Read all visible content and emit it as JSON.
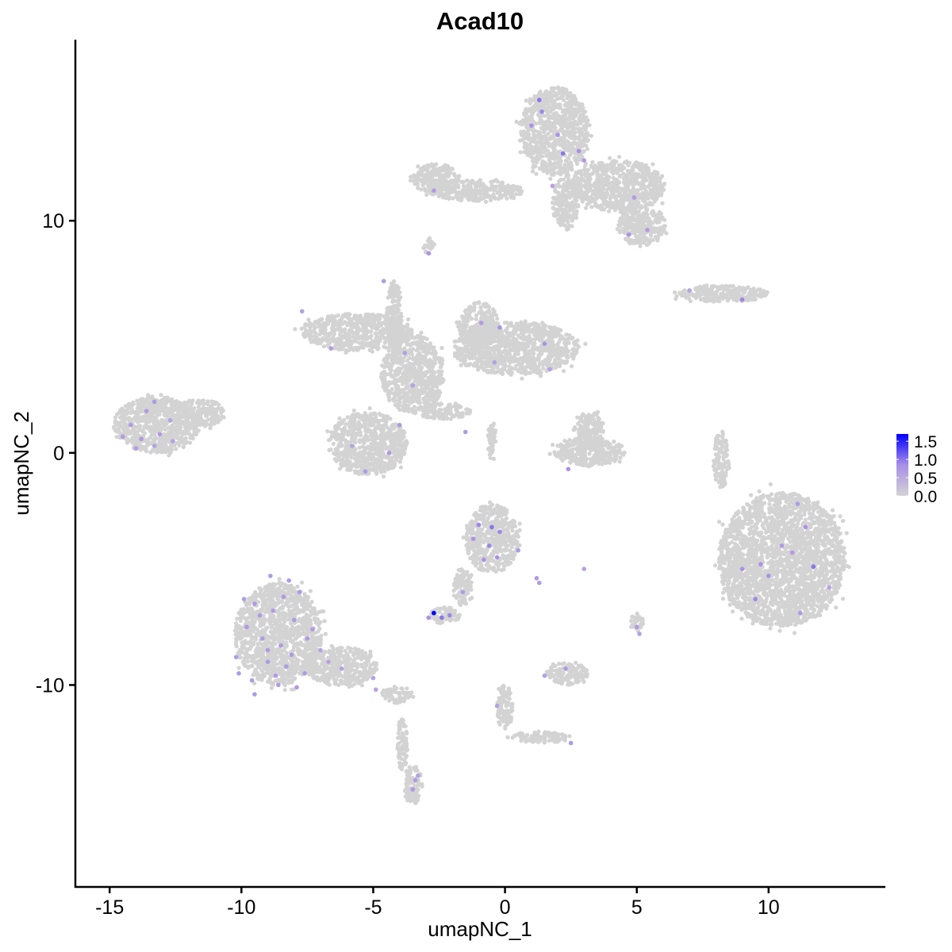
{
  "chart_data": {
    "type": "scatter",
    "title": "Acad10",
    "xlabel": "umapNC_1",
    "ylabel": "umapNC_2",
    "xlim": [
      -16.3,
      14.4
    ],
    "ylim": [
      -18.7,
      17.8
    ],
    "x_ticks": [
      -15,
      -10,
      -5,
      0,
      5,
      10
    ],
    "y_ticks": [
      -10,
      0,
      10
    ],
    "grid": false,
    "legend": {
      "placement": "right",
      "type": "colorbar",
      "ticks": [
        0.0,
        0.5,
        1.0,
        1.5
      ],
      "tick_labels": [
        "0.0",
        "0.5",
        "1.0",
        "1.5"
      ],
      "range": [
        0,
        1.7
      ],
      "low_color": "#d3d3d3",
      "high_color": "#0000ff"
    },
    "cell_clusters": [
      {
        "center": [
          1.9,
          13.85
        ],
        "radius": [
          1.3,
          1.9
        ]
      },
      {
        "center": [
          4.3,
          11.5
        ],
        "radius": [
          1.8,
          1.1
        ]
      },
      {
        "center": [
          5.2,
          9.8
        ],
        "radius": [
          0.9,
          0.85
        ]
      },
      {
        "center": [
          -1.1,
          11.3
        ],
        "radius": [
          1.8,
          0.45
        ]
      },
      {
        "center": [
          -2.6,
          11.8
        ],
        "radius": [
          0.9,
          0.65
        ]
      },
      {
        "center": [
          2.3,
          10.8
        ],
        "radius": [
          0.5,
          1.2
        ]
      },
      {
        "center": [
          -5.6,
          5.2
        ],
        "radius": [
          2.1,
          0.8
        ]
      },
      {
        "center": [
          0.4,
          4.5
        ],
        "radius": [
          2.4,
          1.15
        ]
      },
      {
        "center": [
          -1.0,
          5.5
        ],
        "radius": [
          0.75,
          1.0
        ]
      },
      {
        "center": [
          -3.5,
          3.4
        ],
        "radius": [
          1.2,
          1.7
        ]
      },
      {
        "center": [
          -5.2,
          0.4
        ],
        "radius": [
          1.5,
          1.35
        ]
      },
      {
        "center": [
          -4.2,
          5.8
        ],
        "radius": [
          0.3,
          1.6
        ]
      },
      {
        "center": [
          -2.3,
          1.8
        ],
        "radius": [
          1.0,
          0.35
        ]
      },
      {
        "center": [
          -13.2,
          1.2
        ],
        "radius": [
          1.65,
          1.2
        ]
      },
      {
        "center": [
          -11.6,
          1.7
        ],
        "radius": [
          1.0,
          0.6
        ]
      },
      {
        "center": [
          -8.6,
          -7.8
        ],
        "radius": [
          1.65,
          2.2
        ]
      },
      {
        "center": [
          -6.2,
          -9.2
        ],
        "radius": [
          1.35,
          0.85
        ]
      },
      {
        "center": [
          -4.1,
          -10.4
        ],
        "radius": [
          0.6,
          0.35
        ]
      },
      {
        "center": [
          -3.9,
          -12.5
        ],
        "radius": [
          0.2,
          1.2
        ]
      },
      {
        "center": [
          -3.5,
          -14.3
        ],
        "radius": [
          0.35,
          0.85
        ]
      },
      {
        "center": [
          10.5,
          -4.6
        ],
        "radius": [
          2.4,
          2.9
        ]
      },
      {
        "center": [
          -0.5,
          -3.7
        ],
        "radius": [
          1.0,
          1.5
        ]
      },
      {
        "center": [
          -1.6,
          -5.8
        ],
        "radius": [
          0.35,
          0.8
        ]
      },
      {
        "center": [
          -2.3,
          -7.0
        ],
        "radius": [
          0.6,
          0.35
        ]
      },
      {
        "center": [
          3.2,
          0.05
        ],
        "radius": [
          1.35,
          0.6
        ]
      },
      {
        "center": [
          3.2,
          0.9
        ],
        "radius": [
          0.6,
          0.85
        ]
      },
      {
        "center": [
          8.2,
          6.85
        ],
        "radius": [
          1.8,
          0.35
        ]
      },
      {
        "center": [
          8.2,
          -0.3
        ],
        "radius": [
          0.3,
          1.2
        ]
      },
      {
        "center": [
          2.4,
          -9.5
        ],
        "radius": [
          0.75,
          0.5
        ]
      },
      {
        "center": [
          0.0,
          -11.0
        ],
        "radius": [
          0.3,
          1.0
        ]
      },
      {
        "center": [
          1.3,
          -12.25
        ],
        "radius": [
          1.2,
          0.25
        ]
      },
      {
        "center": [
          5.0,
          -7.3
        ],
        "radius": [
          0.25,
          0.4
        ]
      },
      {
        "center": [
          -2.9,
          8.9
        ],
        "radius": [
          0.2,
          0.35
        ]
      },
      {
        "center": [
          -0.5,
          0.6
        ],
        "radius": [
          0.15,
          1.0
        ]
      }
    ],
    "expressed_cells": [
      [
        -9.5,
        -6.5,
        0.7
      ],
      [
        -8.2,
        -5.5,
        0.7
      ],
      [
        -7.8,
        -6.0,
        0.7
      ],
      [
        -9.8,
        -7.5,
        0.7
      ],
      [
        -9.2,
        -8.0,
        0.7
      ],
      [
        -8.5,
        -8.3,
        0.7
      ],
      [
        -8.0,
        -7.2,
        0.7
      ],
      [
        -7.5,
        -8.0,
        0.7
      ],
      [
        -9.0,
        -9.0,
        0.7
      ],
      [
        -8.3,
        -9.2,
        0.7
      ],
      [
        -7.6,
        -9.5,
        0.7
      ],
      [
        -10.2,
        -8.8,
        0.7
      ],
      [
        -9.6,
        -9.8,
        0.7
      ],
      [
        -8.8,
        -6.8,
        0.7
      ],
      [
        -7.9,
        -10.1,
        0.7
      ],
      [
        -8.6,
        -10.0,
        0.7
      ],
      [
        -7.0,
        -8.5,
        0.6
      ],
      [
        -6.7,
        -9.0,
        0.6
      ],
      [
        -6.2,
        -9.3,
        0.6
      ],
      [
        -5.0,
        -9.7,
        0.6
      ],
      [
        -9.9,
        -6.3,
        0.7
      ],
      [
        -8.9,
        -5.3,
        0.7
      ],
      [
        -8.1,
        -8.7,
        0.7
      ],
      [
        -9.3,
        -7.0,
        0.7
      ],
      [
        -10.1,
        -9.5,
        0.7
      ],
      [
        -7.3,
        -7.6,
        0.7
      ],
      [
        -8.7,
        -9.6,
        0.7
      ],
      [
        -9.5,
        -10.4,
        0.7
      ],
      [
        -8.4,
        -6.2,
        0.7
      ],
      [
        -9.0,
        -8.5,
        0.7
      ],
      [
        -1.0,
        -3.1,
        0.9
      ],
      [
        -0.5,
        -3.2,
        1.0
      ],
      [
        -0.2,
        -3.4,
        0.9
      ],
      [
        -1.2,
        -3.7,
        0.8
      ],
      [
        -0.6,
        -4.0,
        0.9
      ],
      [
        -0.3,
        -4.5,
        0.8
      ],
      [
        0.5,
        -4.2,
        0.7
      ],
      [
        1.2,
        -5.4,
        0.7
      ],
      [
        1.3,
        -5.6,
        0.7
      ],
      [
        -0.8,
        -4.6,
        0.8
      ],
      [
        -2.7,
        -6.9,
        1.7
      ],
      [
        -2.4,
        -7.1,
        1.0
      ],
      [
        -2.1,
        -7.0,
        0.9
      ],
      [
        -1.6,
        -6.0,
        0.7
      ],
      [
        -2.9,
        -7.1,
        0.8
      ],
      [
        11.1,
        -2.2,
        0.7
      ],
      [
        11.4,
        -3.2,
        0.8
      ],
      [
        10.5,
        -4.0,
        0.7
      ],
      [
        9.7,
        -4.8,
        0.8
      ],
      [
        10.9,
        -4.3,
        0.7
      ],
      [
        11.7,
        -4.9,
        1.0
      ],
      [
        9.0,
        -5.0,
        0.8
      ],
      [
        10.0,
        -5.3,
        0.8
      ],
      [
        9.5,
        -6.3,
        0.9
      ],
      [
        11.2,
        -6.9,
        0.7
      ],
      [
        12.3,
        -5.8,
        0.6
      ],
      [
        -14.2,
        1.2,
        0.7
      ],
      [
        -13.6,
        1.8,
        0.7
      ],
      [
        -13.3,
        2.2,
        0.7
      ],
      [
        -14.5,
        0.7,
        0.7
      ],
      [
        -13.8,
        0.6,
        0.7
      ],
      [
        -13.1,
        0.8,
        0.7
      ],
      [
        -12.7,
        1.4,
        0.6
      ],
      [
        -12.6,
        0.5,
        0.6
      ],
      [
        -14.0,
        0.2,
        0.7
      ],
      [
        -13.3,
        0.3,
        0.6
      ],
      [
        1.3,
        15.2,
        1.0
      ],
      [
        1.4,
        14.7,
        0.9
      ],
      [
        2.0,
        13.7,
        0.8
      ],
      [
        2.2,
        12.9,
        1.0
      ],
      [
        2.8,
        13.0,
        0.8
      ],
      [
        1.0,
        14.1,
        0.8
      ],
      [
        3.0,
        12.6,
        0.7
      ],
      [
        1.8,
        11.5,
        0.6
      ],
      [
        4.7,
        9.4,
        0.8
      ],
      [
        5.4,
        9.6,
        0.7
      ],
      [
        -2.7,
        11.3,
        0.7
      ],
      [
        -2.9,
        8.6,
        0.8
      ],
      [
        4.9,
        11.0,
        0.7
      ],
      [
        -4.6,
        7.4,
        0.7
      ],
      [
        -7.7,
        6.1,
        0.6
      ],
      [
        -6.6,
        4.5,
        0.7
      ],
      [
        -0.9,
        5.6,
        0.7
      ],
      [
        -0.2,
        5.4,
        0.8
      ],
      [
        1.5,
        4.7,
        0.8
      ],
      [
        1.7,
        3.6,
        0.6
      ],
      [
        -3.8,
        4.3,
        0.6
      ],
      [
        -1.5,
        0.9,
        0.7
      ],
      [
        -4.0,
        1.2,
        0.7
      ],
      [
        -5.3,
        -0.8,
        0.7
      ],
      [
        -4.4,
        0.0,
        0.7
      ],
      [
        -5.8,
        0.3,
        0.6
      ],
      [
        -3.5,
        2.9,
        0.6
      ],
      [
        -0.4,
        3.9,
        0.6
      ],
      [
        2.4,
        -0.7,
        0.8
      ],
      [
        7.0,
        7.0,
        0.6
      ],
      [
        9.0,
        6.6,
        0.9
      ],
      [
        5.0,
        -7.5,
        0.7
      ],
      [
        5.1,
        -7.8,
        0.6
      ],
      [
        -3.5,
        -14.5,
        0.7
      ],
      [
        -3.4,
        -14.1,
        0.7
      ],
      [
        -3.3,
        -13.9,
        0.6
      ],
      [
        2.3,
        -9.3,
        0.7
      ],
      [
        1.5,
        -9.6,
        0.6
      ],
      [
        -0.3,
        -10.9,
        0.6
      ],
      [
        2.5,
        -12.5,
        0.7
      ],
      [
        -4.9,
        -10.2,
        0.6
      ],
      [
        3.0,
        -5.0,
        0.6
      ]
    ]
  }
}
